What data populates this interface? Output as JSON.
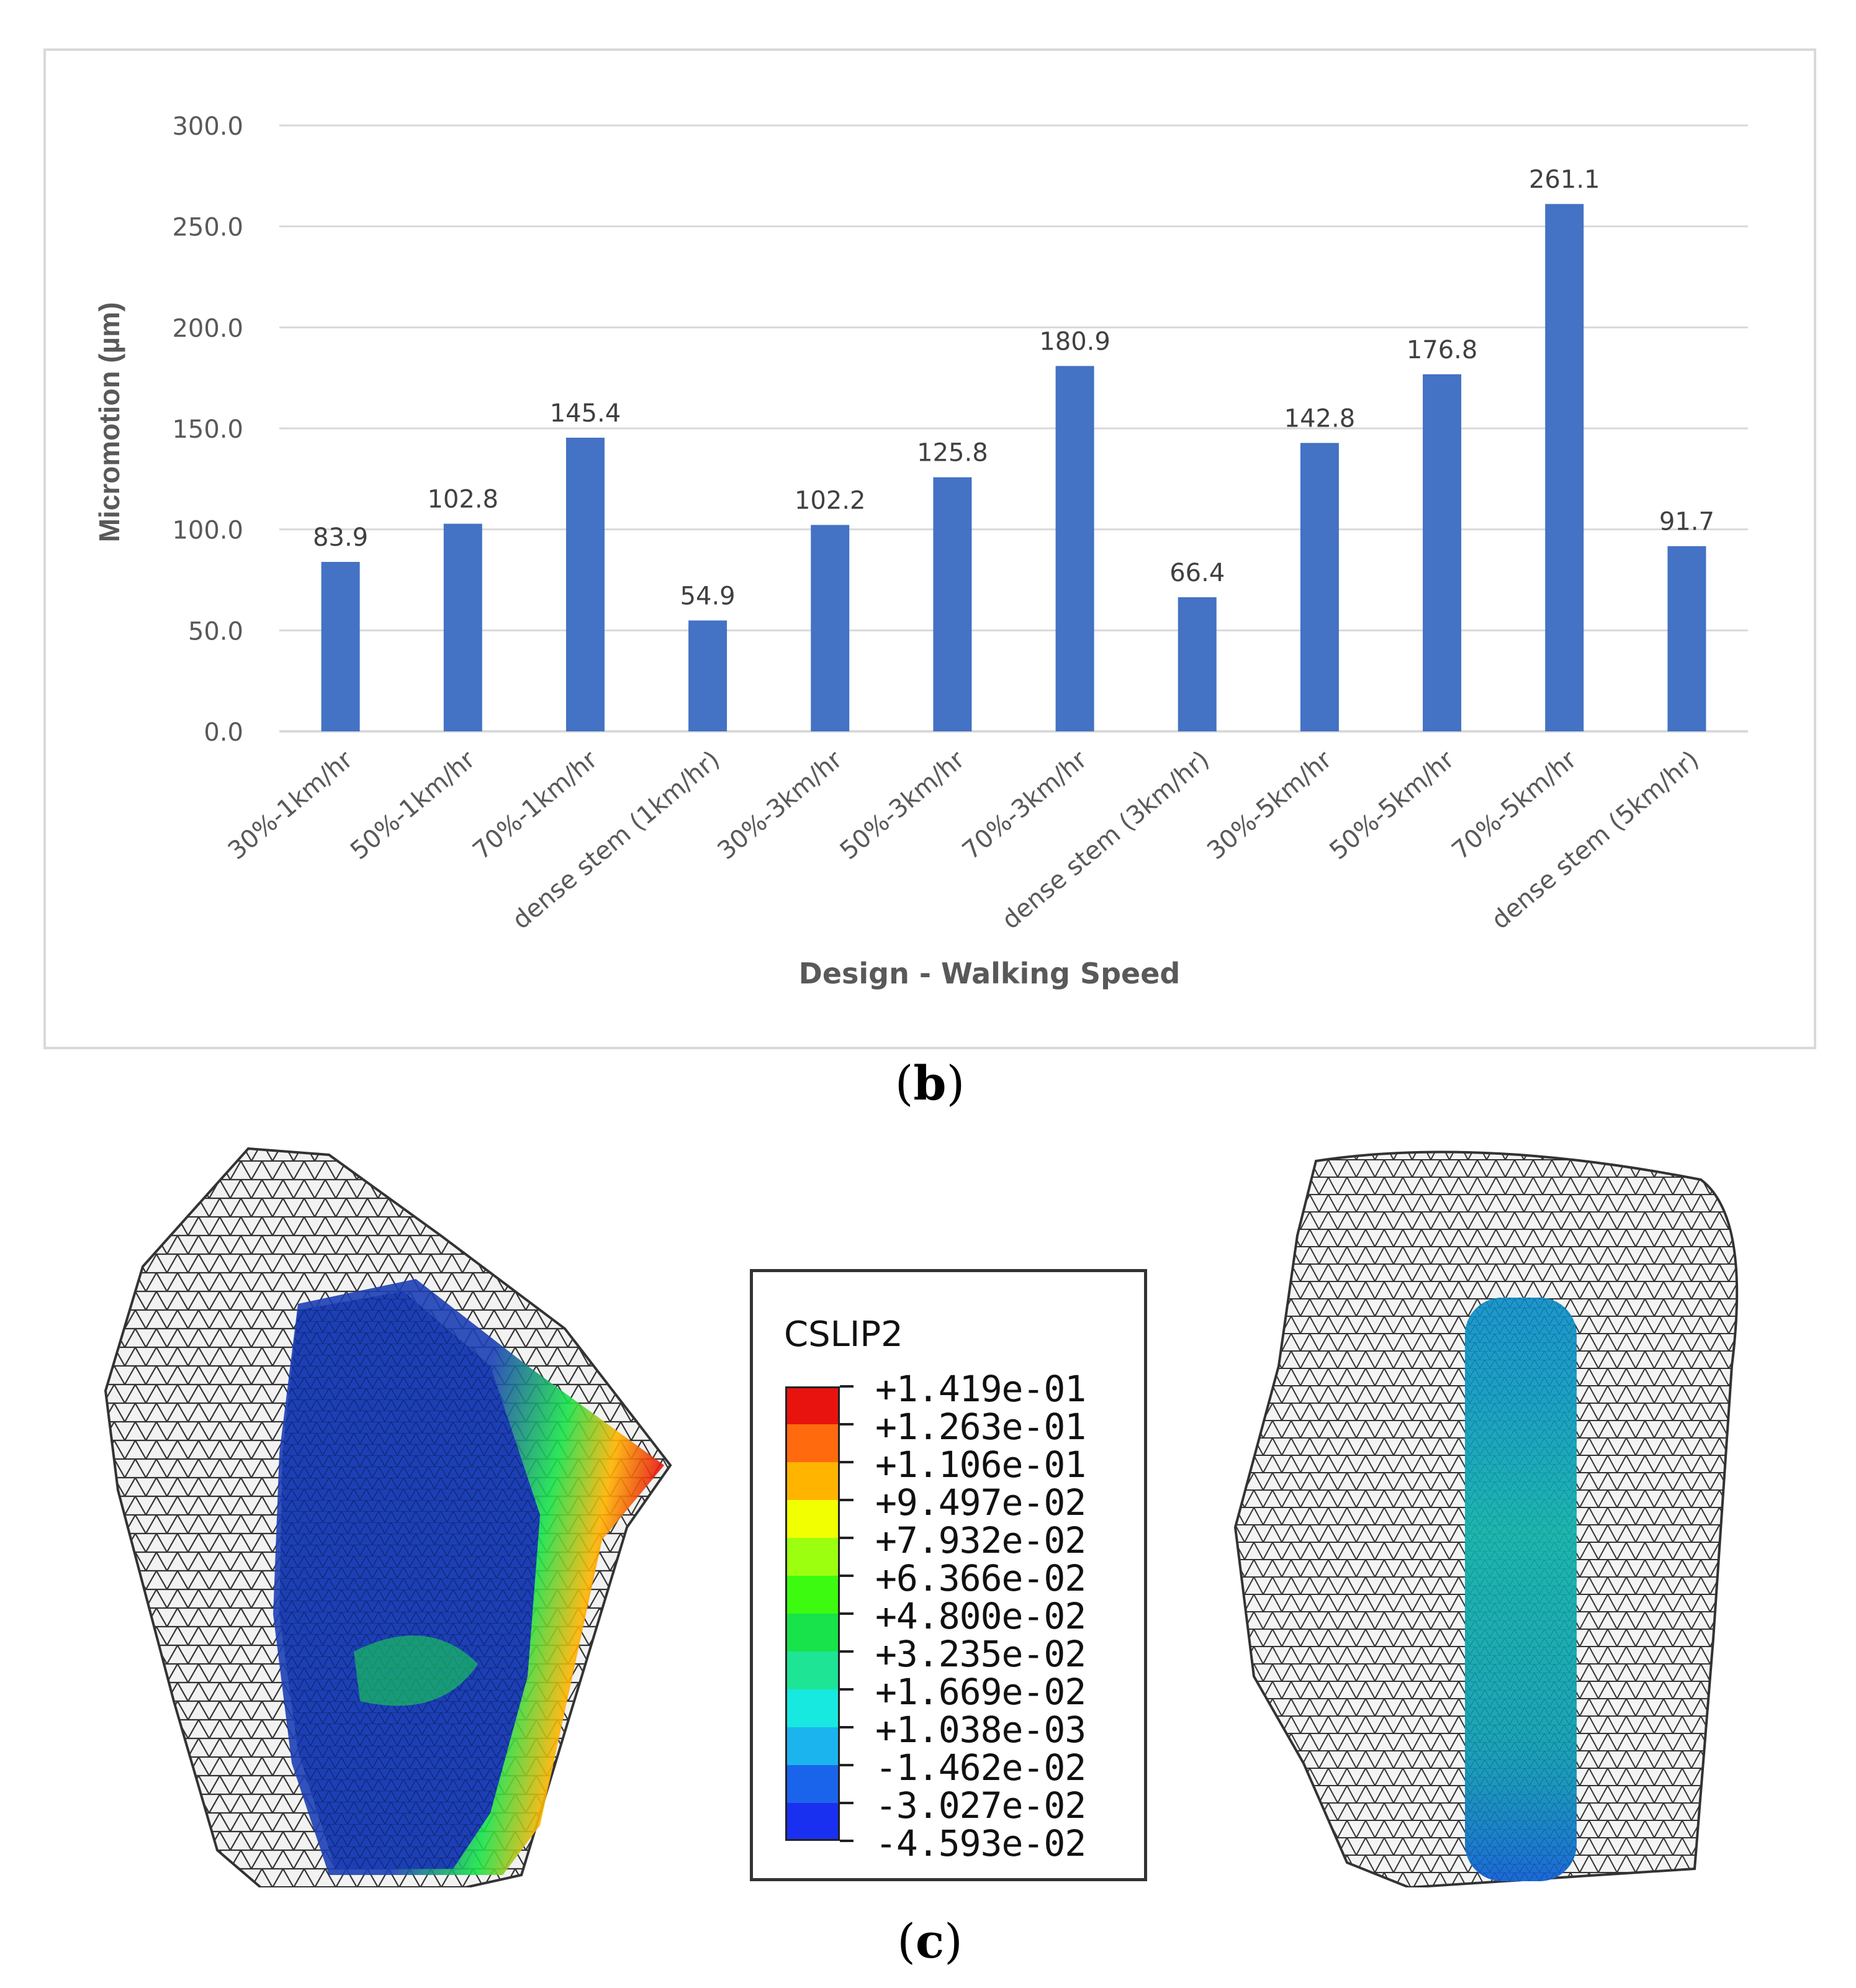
{
  "chart_data": {
    "type": "bar",
    "categories": [
      "30%-1km/hr",
      "50%-1km/hr",
      "70%-1km/hr",
      "dense stem (1km/hr)",
      "30%-3km/hr",
      "50%-3km/hr",
      "70%-3km/hr",
      "dense stem (3km/hr)",
      "30%-5km/hr",
      "50%-5km/hr",
      "70%-5km/hr",
      "dense stem (5km/hr)"
    ],
    "values": [
      83.9,
      102.8,
      145.4,
      54.9,
      102.2,
      125.8,
      180.9,
      66.4,
      142.8,
      176.8,
      261.1,
      91.7
    ],
    "data_labels": [
      "83.9",
      "102.8",
      "145.4",
      "54.9",
      "102.2",
      "125.8",
      "180.9",
      "66.4",
      "142.8",
      "176.8",
      "261.1",
      "91.7"
    ],
    "xlabel": "Design - Walking Speed",
    "ylabel": "Micromotion (µm)",
    "ylim": [
      0,
      300
    ],
    "yticks": [
      "0.0",
      "50.0",
      "100.0",
      "150.0",
      "200.0",
      "250.0",
      "300.0"
    ],
    "ytick_values": [
      0,
      50,
      100,
      150,
      200,
      250,
      300
    ],
    "grid": true,
    "bar_color": "#4472c4"
  },
  "captions": {
    "b": "b",
    "c": "c"
  },
  "legend": {
    "title": "CSLIP2",
    "labels": [
      "+1.419e-01",
      "+1.263e-01",
      "+1.106e-01",
      "+9.497e-02",
      "+7.932e-02",
      "+6.366e-02",
      "+4.800e-02",
      "+3.235e-02",
      "+1.669e-02",
      "+1.038e-03",
      "-1.462e-02",
      "-3.027e-02",
      "-4.593e-02"
    ],
    "colors": [
      "#e8130f",
      "#ff6a0e",
      "#ffb400",
      "#f1ff00",
      "#9cff10",
      "#3dfb10",
      "#18e34a",
      "#1ee496",
      "#17e8e0",
      "#1cb4ee",
      "#1a64eb",
      "#1a30f0"
    ]
  }
}
